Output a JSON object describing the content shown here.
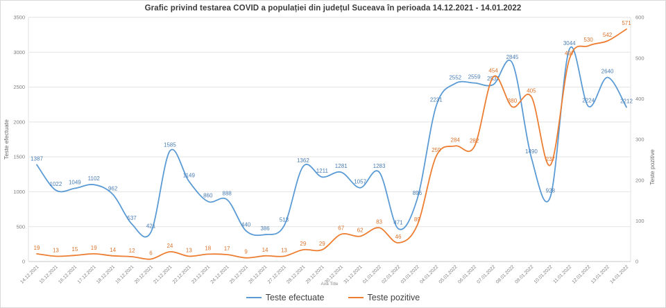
{
  "title": "Grafic privind testarea COVID a populației din județul Suceava în perioada 14.12.2021 - 14.01.2022",
  "chart_data": {
    "type": "line",
    "x_axis_title": "Axa Title",
    "grid": true,
    "legend_position": "bottom",
    "categories": [
      "14.12.2021",
      "15.12.2021",
      "16.12.2021",
      "17.12.2021",
      "18.12.2021",
      "19.12.2021",
      "20.12.2021",
      "21.12.2021",
      "22.12.2021",
      "23.12.2021",
      "24.12.2021",
      "25.12.2021",
      "26.12.2021",
      "27.12.2021",
      "28.12.2021",
      "29.12.2021",
      "30.12.2021",
      "31.12.2021",
      "01.01.2022",
      "02.01.2022",
      "03.01.2022",
      "04.01.2022",
      "05.01.2022",
      "06.01.2022",
      "07.01.2022",
      "08.01.2022",
      "09.01.2022",
      "10.01.2022",
      "11.01.2022",
      "12.01.2022",
      "13.01.2022",
      "14.01.2022"
    ],
    "series": [
      {
        "name": "Teste efectuate",
        "axis": "left",
        "color": "#5b9bd5",
        "label_color": "#4a7db3",
        "values": [
          1387,
          1022,
          1049,
          1102,
          962,
          537,
          421,
          1585,
          1149,
          860,
          888,
          440,
          386,
          513,
          1362,
          1211,
          1281,
          1057,
          1283,
          471,
          896,
          2231,
          2552,
          2559,
          2537,
          2845,
          1490,
          928,
          3044,
          2224,
          2640,
          2212
        ]
      },
      {
        "name": "Teste pozitive",
        "axis": "right",
        "color": "#ed7d31",
        "label_color": "#d9732b",
        "values": [
          19,
          13,
          15,
          19,
          14,
          12,
          6,
          24,
          13,
          18,
          17,
          9,
          14,
          13,
          29,
          29,
          67,
          62,
          83,
          46,
          89,
          259,
          284,
          282,
          454,
          380,
          405,
          237,
          497,
          530,
          542,
          571
        ]
      }
    ],
    "left_axis": {
      "title": "Teste efectuate",
      "min": 0,
      "max": 3500,
      "step": 500
    },
    "right_axis": {
      "title": "Teste pozitive",
      "min": 0,
      "max": 600,
      "step": 100
    },
    "colors": {
      "gridline": "#e2e2e2",
      "axis_line": "#c9c9c9",
      "tick_text": "#7f7f7f"
    }
  }
}
